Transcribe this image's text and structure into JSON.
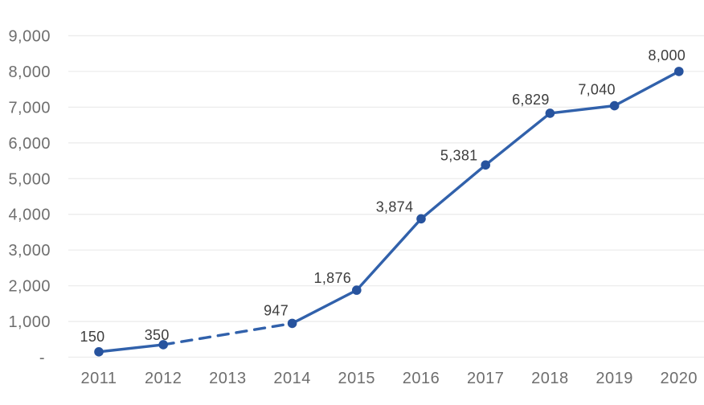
{
  "chart_data": {
    "type": "line",
    "title": "",
    "xlabel": "",
    "ylabel": "",
    "categories": [
      "2011",
      "2012",
      "2013",
      "2014",
      "2015",
      "2016",
      "2017",
      "2018",
      "2019",
      "2020"
    ],
    "series": [
      {
        "name": "values",
        "values": [
          150,
          350,
          null,
          947,
          1876,
          3874,
          5381,
          6829,
          7040,
          8000
        ],
        "data_labels": [
          "150",
          "350",
          "",
          "947",
          "1,876",
          "3,874",
          "5,381",
          "6,829",
          "7,040",
          "8,000"
        ],
        "line_color": "#3161ab",
        "marker_color": "#27539e",
        "dashed_segment": {
          "from": "2012",
          "to": "2014"
        }
      }
    ],
    "ylim": [
      0,
      9000
    ],
    "y_ticks": {
      "values": [
        0,
        1000,
        2000,
        3000,
        4000,
        5000,
        6000,
        7000,
        8000,
        9000
      ],
      "labels": [
        "-",
        "1,000",
        "2,000",
        "3,000",
        "4,000",
        "5,000",
        "6,000",
        "7,000",
        "8,000",
        "9,000"
      ]
    },
    "grid": "horizontal",
    "legend": "none",
    "colors": {
      "grid": "#ececec",
      "axis_text": "#6e6e6e",
      "data_label_text": "#3d3d3d",
      "background": "#ffffff"
    }
  }
}
